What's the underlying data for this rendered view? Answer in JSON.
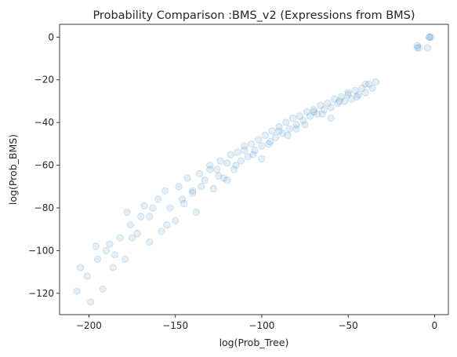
{
  "chart_data": {
    "type": "scatter",
    "title": "Probability Comparison :BMS_v2 (Expressions from BMS)",
    "xlabel": "log(Prob_Tree)",
    "ylabel": "log(Prob_BMS)",
    "xlim": [
      -217,
      8
    ],
    "ylim": [
      -130,
      6
    ],
    "xticks": [
      -200,
      -150,
      -100,
      -50,
      0
    ],
    "yticks": [
      -120,
      -100,
      -80,
      -60,
      -40,
      -20,
      0
    ],
    "xtick_labels": [
      "−200",
      "−150",
      "−100",
      "−50",
      "0"
    ],
    "ytick_labels": [
      "−120",
      "−100",
      "−80",
      "−60",
      "−40",
      "−20",
      "0"
    ],
    "marker_color": "#1f77b4",
    "marker_alpha": 0.12,
    "grid": false,
    "legend": "none",
    "series": [
      {
        "x": [
          -207,
          -205,
          -199,
          -201,
          -195,
          -192,
          -196,
          -190,
          -186,
          -188,
          -182,
          -179,
          -176,
          -178,
          -172,
          -170,
          -168,
          -165,
          -163,
          -160,
          -158,
          -156,
          -153,
          -150,
          -148,
          -146,
          -143,
          -140,
          -138,
          -136,
          -133,
          -130,
          -128,
          -126,
          -124,
          -122,
          -120,
          -118,
          -116,
          -114,
          -112,
          -110,
          -108,
          -106,
          -104,
          -102,
          -100,
          -98,
          -96,
          -94,
          -92,
          -90,
          -88,
          -86,
          -84,
          -82,
          -80,
          -78,
          -76,
          -74,
          -72,
          -70,
          -68,
          -66,
          -64,
          -62,
          -60,
          -58,
          -56,
          -54,
          -52,
          -50,
          -48,
          -46,
          -44,
          -42,
          -40,
          -38,
          -36,
          -34,
          -155,
          -145,
          -135,
          -125,
          -115,
          -105,
          -95,
          -85,
          -75,
          -65,
          -55,
          -45,
          -185,
          -175,
          -165,
          -140,
          -130,
          -120,
          -110,
          -100,
          -90,
          -80,
          -70,
          -60,
          -50,
          -40,
          -3,
          -3,
          -2,
          -10,
          -10,
          -9,
          -4
        ],
        "y": [
          -119,
          -108,
          -124,
          -112,
          -104,
          -118,
          -98,
          -100,
          -108,
          -97,
          -94,
          -104,
          -88,
          -82,
          -92,
          -84,
          -79,
          -96,
          -80,
          -76,
          -91,
          -72,
          -80,
          -86,
          -70,
          -76,
          -66,
          -72,
          -82,
          -64,
          -67,
          -60,
          -71,
          -62,
          -58,
          -66,
          -59,
          -55,
          -62,
          -54,
          -58,
          -51,
          -56,
          -50,
          -53,
          -48,
          -51,
          -46,
          -50,
          -44,
          -47,
          -42,
          -45,
          -40,
          -43,
          -38,
          -41,
          -37,
          -39,
          -35,
          -37,
          -34,
          -36,
          -32,
          -34,
          -31,
          -33,
          -29,
          -31,
          -28,
          -30,
          -27,
          -29,
          -25,
          -27,
          -24,
          -26,
          -22,
          -24,
          -21,
          -88,
          -78,
          -70,
          -65,
          -60,
          -55,
          -49,
          -46,
          -41,
          -36,
          -30,
          -28,
          -102,
          -94,
          -84,
          -73,
          -62,
          -67,
          -53,
          -57,
          -44,
          -43,
          -35,
          -38,
          -26,
          -22,
          0,
          0,
          0,
          -4,
          -5,
          -5,
          -5
        ]
      }
    ]
  }
}
